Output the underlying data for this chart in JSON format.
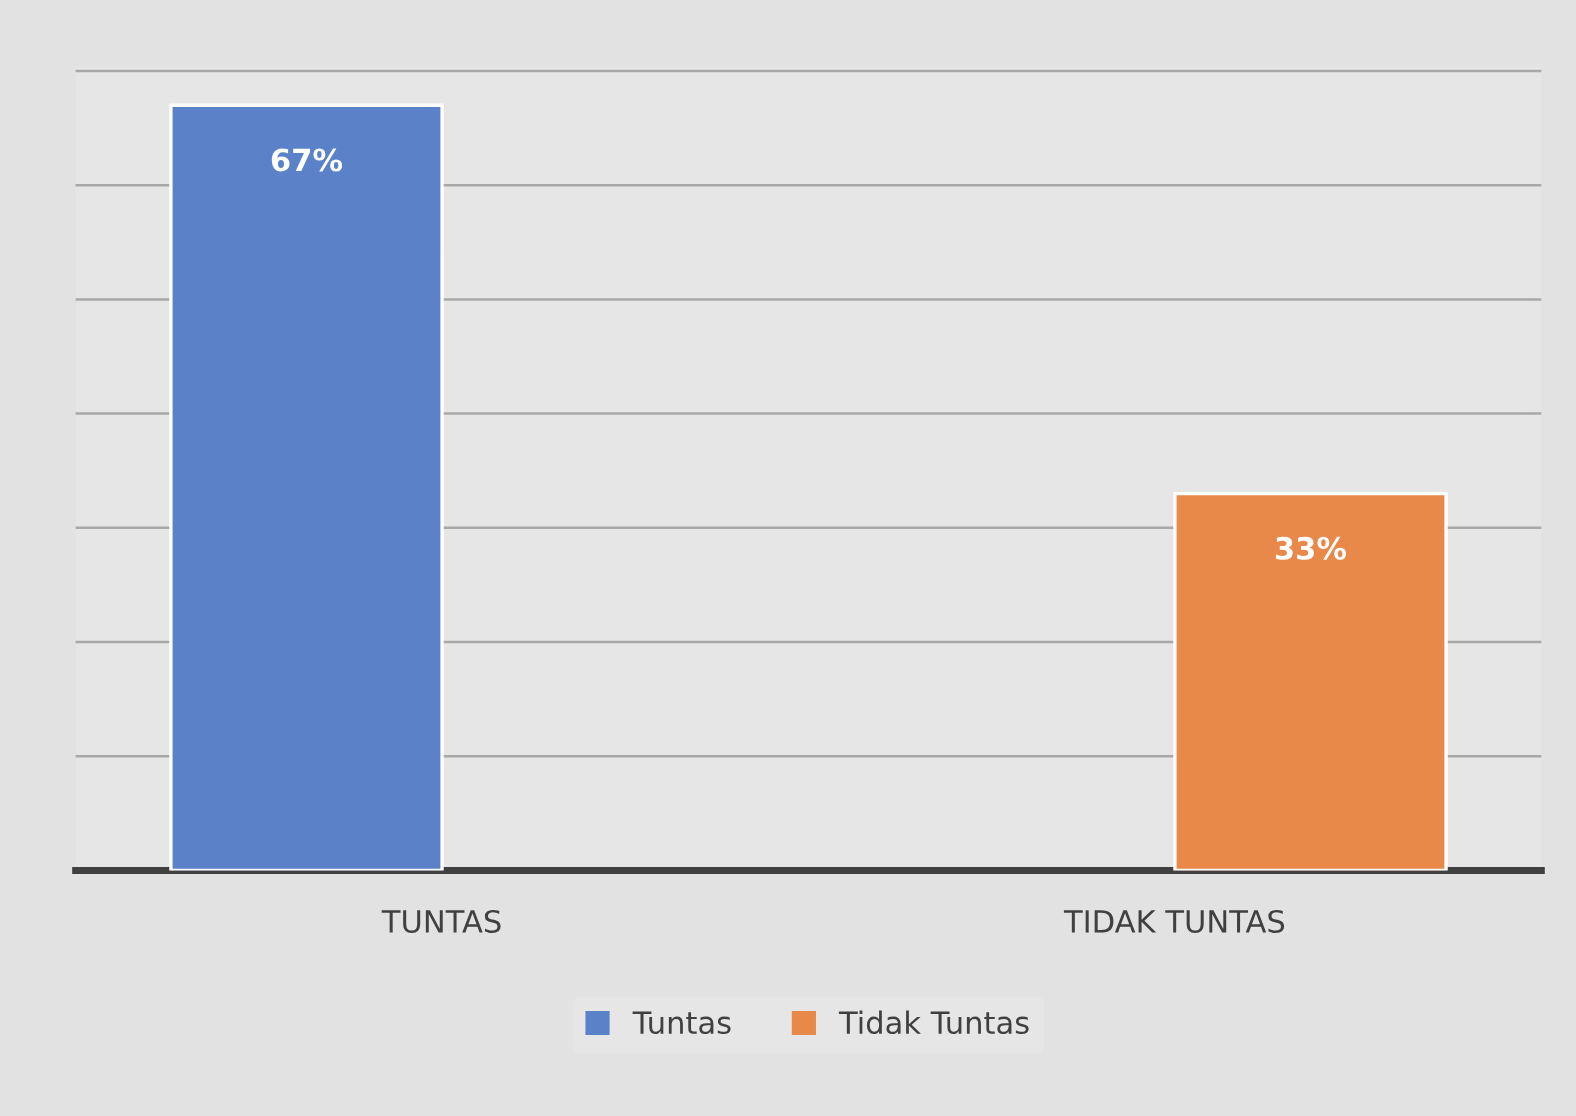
{
  "chart_data": {
    "type": "bar",
    "categories": [
      "TUNTAS",
      "TIDAK TUNTAS"
    ],
    "series": [
      {
        "name": "Tuntas",
        "color": "#5b82c8",
        "values": [
          67,
          null
        ],
        "value_labels": [
          "67%",
          null
        ]
      },
      {
        "name": "Tidak Tuntas",
        "color": "#e8894a",
        "values": [
          null,
          33
        ],
        "value_labels": [
          null,
          "33%"
        ]
      }
    ],
    "tick_labels": "x",
    "grid": "y",
    "legend": "bottom"
  }
}
